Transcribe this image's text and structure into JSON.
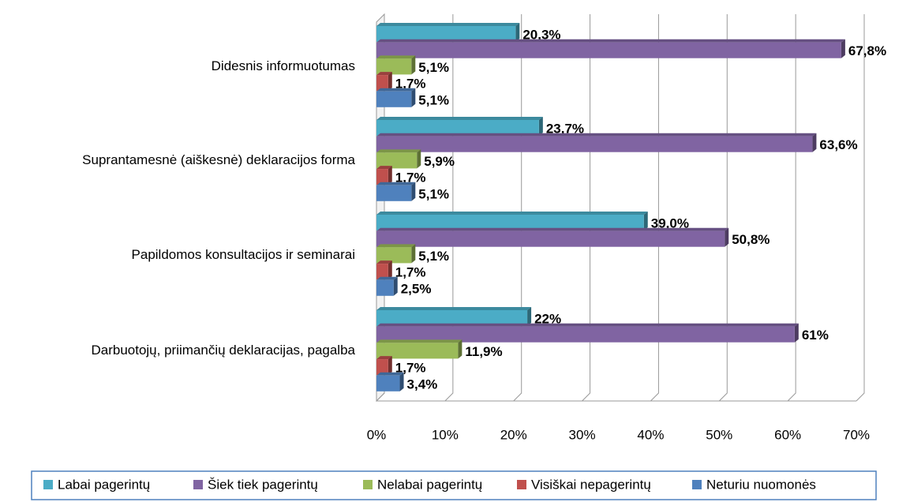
{
  "chart_data": {
    "type": "bar",
    "orientation": "horizontal",
    "categories": [
      "Didesnis informuotumas",
      "Suprantamesnė (aiškesnė) deklaracijos forma",
      "Papildomos konsultacijos ir seminarai",
      "Darbuotojų, priimančių deklaracijas, pagalba"
    ],
    "series": [
      {
        "name": "Labai pagerintų",
        "color": "#4bacc6",
        "values": [
          20.3,
          23.7,
          39.0,
          22
        ],
        "value_labels": [
          "20,3%",
          "23,7%",
          "39,0%",
          "22%"
        ]
      },
      {
        "name": "Šiek tiek pagerintų",
        "color": "#8064a2",
        "values": [
          67.8,
          63.6,
          50.8,
          61
        ],
        "value_labels": [
          "67,8%",
          "63,6%",
          "50,8%",
          "61%"
        ]
      },
      {
        "name": "Nelabai pagerintų",
        "color": "#9bbb59",
        "values": [
          5.1,
          5.9,
          5.1,
          11.9
        ],
        "value_labels": [
          "5,1%",
          "5,9%",
          "5,1%",
          "11,9%"
        ]
      },
      {
        "name": "Visiškai nepagerintų",
        "color": "#c0504d",
        "values": [
          1.7,
          1.7,
          1.7,
          1.7
        ],
        "value_labels": [
          "1,7%",
          "1,7%",
          "1,7%",
          "1,7%"
        ]
      },
      {
        "name": "Neturiu nuomonės",
        "color": "#4f81bd",
        "values": [
          5.1,
          5.1,
          2.5,
          3.4
        ],
        "value_labels": [
          "5,1%",
          "5,1%",
          "2,5%",
          "3,4%"
        ]
      }
    ],
    "xlim": [
      0,
      70
    ],
    "xticks": [
      {
        "value": 0,
        "label": "0%"
      },
      {
        "value": 10,
        "label": "10%"
      },
      {
        "value": 20,
        "label": "20%"
      },
      {
        "value": 30,
        "label": "30%"
      },
      {
        "value": 40,
        "label": "40%"
      },
      {
        "value": 50,
        "label": "50%"
      },
      {
        "value": 60,
        "label": "60%"
      },
      {
        "value": 70,
        "label": "70%"
      }
    ],
    "grid": true,
    "legend": "bottom"
  }
}
